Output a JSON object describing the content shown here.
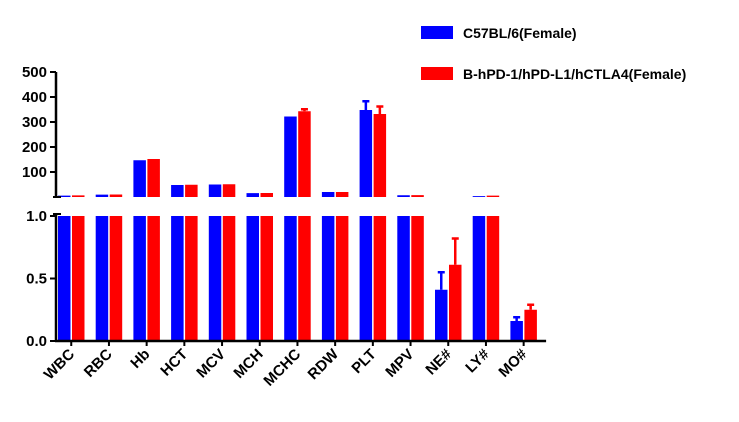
{
  "chart_data": {
    "type": "bar",
    "title": "",
    "xlabel": "",
    "ylabel": "",
    "categories": [
      "WBC",
      "RBC",
      "Hb",
      "HCT",
      "MCV",
      "MCH",
      "MCHC",
      "RDW",
      "PLT",
      "MPV",
      "NE#",
      "LY#",
      "MO#"
    ],
    "series": [
      {
        "name": "C57BL/6(Female)",
        "color": "#0000ff",
        "values": [
          5.5,
          9.5,
          147,
          48,
          50,
          15.5,
          322,
          20,
          348,
          7,
          0.41,
          3.5,
          0.16
        ],
        "errors": [
          0.5,
          0.3,
          4,
          1.5,
          1,
          0.3,
          4,
          0.5,
          35,
          0.3,
          0.14,
          0.3,
          0.03
        ]
      },
      {
        "name": "B-hPD-1/hPD-L1/hCTLA4(Female)",
        "color": "#ff0000",
        "values": [
          6.5,
          10,
          152,
          49,
          51,
          16,
          343,
          20,
          332,
          7.5,
          0.61,
          5.5,
          0.25
        ],
        "errors": [
          0.5,
          0.3,
          4,
          1.5,
          1,
          0.3,
          8,
          0.5,
          30,
          0.3,
          0.21,
          0.5,
          0.04
        ]
      }
    ],
    "axes": {
      "upper": {
        "ylim": [
          0,
          500
        ],
        "ticks": [
          "100",
          "200",
          "300",
          "400",
          "500"
        ]
      },
      "lower": {
        "ylim": [
          0,
          1.0
        ],
        "ticks": [
          "0.0",
          "0.5",
          "1.0"
        ]
      }
    },
    "axis_break": true,
    "grid": false,
    "legend_position": "top-right"
  }
}
